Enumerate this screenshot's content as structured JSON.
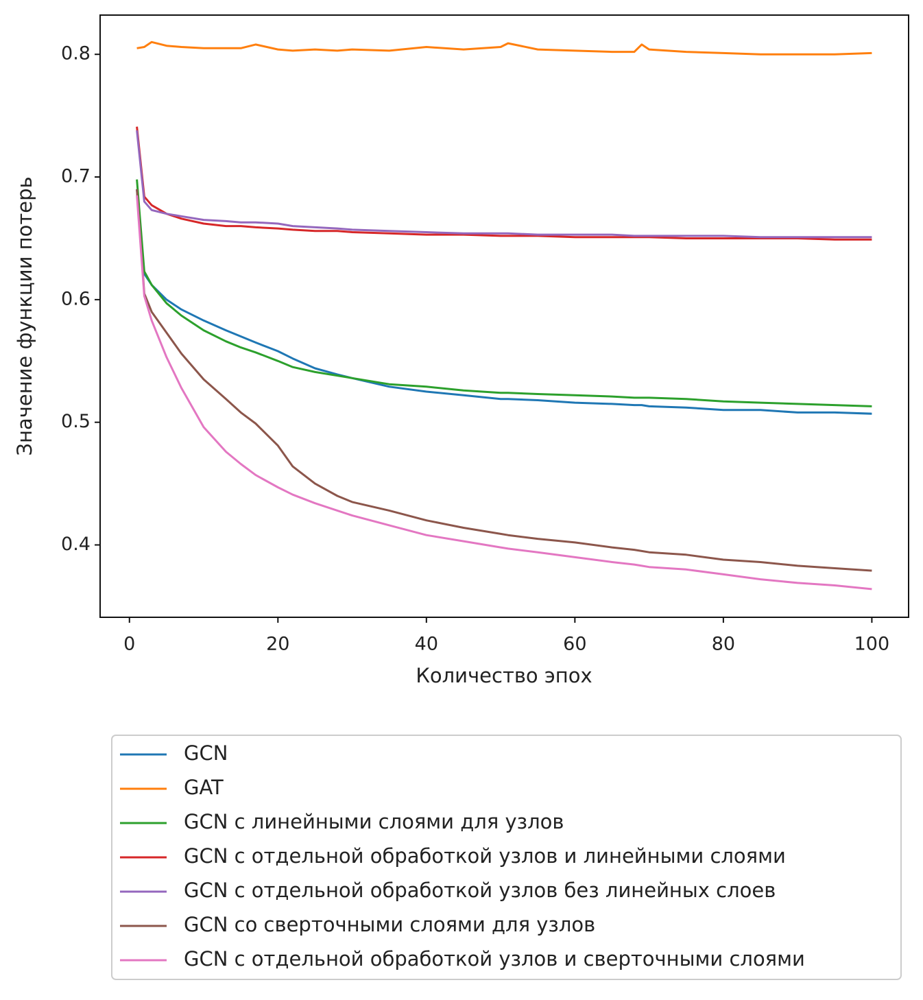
{
  "chart_data": {
    "type": "line",
    "xlabel": "Количество эпох",
    "ylabel": "Значение функции потерь",
    "x": [
      1,
      2,
      3,
      5,
      7,
      10,
      13,
      15,
      17,
      20,
      22,
      25,
      28,
      30,
      35,
      40,
      45,
      50,
      51,
      55,
      60,
      65,
      68,
      69,
      70,
      75,
      80,
      85,
      90,
      95,
      100
    ],
    "series": [
      {
        "name": "GCN",
        "color": "#1f77b4",
        "values": [
          0.69,
          0.621,
          0.612,
          0.6,
          0.592,
          0.583,
          0.575,
          0.57,
          0.565,
          0.558,
          0.552,
          0.544,
          0.539,
          0.536,
          0.529,
          0.525,
          0.522,
          0.519,
          0.519,
          0.518,
          0.516,
          0.515,
          0.514,
          0.514,
          0.513,
          0.512,
          0.51,
          0.51,
          0.508,
          0.508,
          0.507
        ]
      },
      {
        "name": "GAT",
        "color": "#ff7f0e",
        "values": [
          0.805,
          0.806,
          0.81,
          0.807,
          0.806,
          0.805,
          0.805,
          0.805,
          0.808,
          0.804,
          0.803,
          0.804,
          0.803,
          0.804,
          0.803,
          0.806,
          0.804,
          0.806,
          0.809,
          0.804,
          0.803,
          0.802,
          0.802,
          0.808,
          0.804,
          0.802,
          0.801,
          0.8,
          0.8,
          0.8,
          0.801
        ]
      },
      {
        "name": "GCN с линейными слоями для узлов",
        "color": "#2ca02c",
        "values": [
          0.698,
          0.623,
          0.612,
          0.597,
          0.587,
          0.575,
          0.566,
          0.561,
          0.557,
          0.55,
          0.545,
          0.541,
          0.538,
          0.536,
          0.531,
          0.529,
          0.526,
          0.524,
          0.524,
          0.523,
          0.522,
          0.521,
          0.52,
          0.52,
          0.52,
          0.519,
          0.517,
          0.516,
          0.515,
          0.514,
          0.513
        ]
      },
      {
        "name": "GCN с отдельной обработкой узлов и линейными слоями",
        "color": "#d62728",
        "values": [
          0.741,
          0.684,
          0.677,
          0.67,
          0.666,
          0.662,
          0.66,
          0.66,
          0.659,
          0.658,
          0.657,
          0.656,
          0.656,
          0.655,
          0.654,
          0.653,
          0.653,
          0.652,
          0.652,
          0.652,
          0.651,
          0.651,
          0.651,
          0.651,
          0.651,
          0.65,
          0.65,
          0.65,
          0.65,
          0.649,
          0.649
        ]
      },
      {
        "name": "GCN с отдельной обработкой узлов без линейных слоев",
        "color": "#9467bd",
        "values": [
          0.738,
          0.68,
          0.673,
          0.67,
          0.668,
          0.665,
          0.664,
          0.663,
          0.663,
          0.662,
          0.66,
          0.659,
          0.658,
          0.657,
          0.656,
          0.655,
          0.654,
          0.654,
          0.654,
          0.653,
          0.653,
          0.653,
          0.652,
          0.652,
          0.652,
          0.652,
          0.652,
          0.651,
          0.651,
          0.651,
          0.651
        ]
      },
      {
        "name": "GCN со сверточными слоями для узлов",
        "color": "#8c564b",
        "values": [
          0.69,
          0.605,
          0.59,
          0.573,
          0.556,
          0.535,
          0.519,
          0.508,
          0.499,
          0.481,
          0.464,
          0.45,
          0.44,
          0.435,
          0.428,
          0.42,
          0.414,
          0.409,
          0.408,
          0.405,
          0.402,
          0.398,
          0.396,
          0.395,
          0.394,
          0.392,
          0.388,
          0.386,
          0.383,
          0.381,
          0.379
        ]
      },
      {
        "name": "GCN с отдельной обработкой узлов и сверточными слоями",
        "color": "#e377c2",
        "values": [
          0.685,
          0.603,
          0.583,
          0.553,
          0.528,
          0.496,
          0.476,
          0.466,
          0.457,
          0.447,
          0.441,
          0.434,
          0.428,
          0.424,
          0.416,
          0.408,
          0.403,
          0.398,
          0.397,
          0.394,
          0.39,
          0.386,
          0.384,
          0.383,
          0.382,
          0.38,
          0.376,
          0.372,
          0.369,
          0.367,
          0.364
        ]
      }
    ],
    "xlim": [
      -3.95,
      104.95
    ],
    "ylim": [
      0.341,
      0.832
    ],
    "xticks": [
      0,
      20,
      40,
      60,
      80,
      100
    ],
    "yticks": [
      0.4,
      0.5,
      0.6,
      0.7,
      0.8
    ],
    "grid": false,
    "legend": "below"
  }
}
